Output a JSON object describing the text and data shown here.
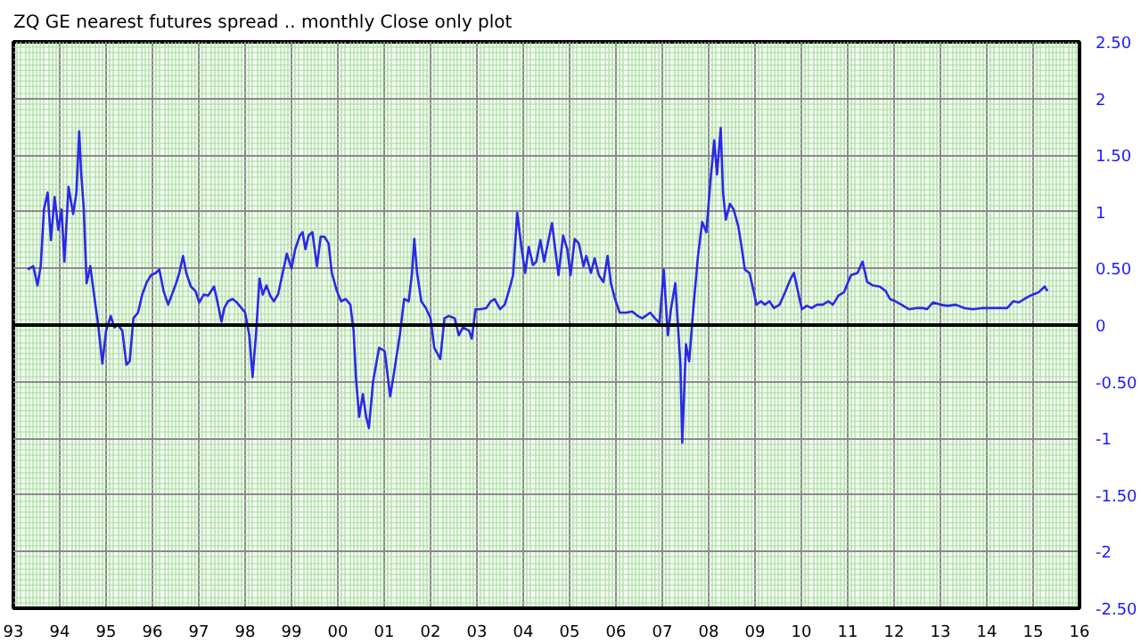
{
  "chart_data": {
    "type": "line",
    "title": "ZQ GE nearest futures spread .. monthly Close only plot",
    "xlim": [
      1993,
      2016
    ],
    "ylim": [
      -2.5,
      2.5
    ],
    "xticks": [
      {
        "value": 1993,
        "label": "93"
      },
      {
        "value": 1994,
        "label": "94"
      },
      {
        "value": 1995,
        "label": "95"
      },
      {
        "value": 1996,
        "label": "96"
      },
      {
        "value": 1997,
        "label": "97"
      },
      {
        "value": 1998,
        "label": "98"
      },
      {
        "value": 1999,
        "label": "99"
      },
      {
        "value": 2000,
        "label": "00"
      },
      {
        "value": 2001,
        "label": "01"
      },
      {
        "value": 2002,
        "label": "02"
      },
      {
        "value": 2003,
        "label": "03"
      },
      {
        "value": 2004,
        "label": "04"
      },
      {
        "value": 2005,
        "label": "05"
      },
      {
        "value": 2006,
        "label": "06"
      },
      {
        "value": 2007,
        "label": "07"
      },
      {
        "value": 2008,
        "label": "08"
      },
      {
        "value": 2009,
        "label": "09"
      },
      {
        "value": 2010,
        "label": "10"
      },
      {
        "value": 2011,
        "label": "11"
      },
      {
        "value": 2012,
        "label": "12"
      },
      {
        "value": 2013,
        "label": "13"
      },
      {
        "value": 2014,
        "label": "14"
      },
      {
        "value": 2015,
        "label": "15"
      },
      {
        "value": 2016,
        "label": "16"
      }
    ],
    "yticks": [
      {
        "value": 2.5,
        "label": "2.50"
      },
      2,
      {
        "value": 1.5,
        "label": "1.50"
      },
      1,
      {
        "value": 0.5,
        "label": "0.50"
      },
      0,
      {
        "value": -0.5,
        "label": "-0.50"
      },
      -1,
      {
        "value": -1.5,
        "label": "-1.50"
      },
      -2,
      {
        "value": -2.5,
        "label": "-2.50"
      }
    ],
    "grid": true,
    "ref_lines": [
      {
        "axis": "y",
        "value": 0,
        "color": "#000000"
      }
    ],
    "series": [
      {
        "color": "#2a2ae6",
        "x": [
          1993.31,
          1993.43,
          1993.52,
          1993.59,
          1993.66,
          1993.74,
          1993.81,
          1993.89,
          1993.97,
          1994.04,
          1994.1,
          1994.19,
          1994.29,
          1994.36,
          1994.42,
          1994.46,
          1994.52,
          1994.58,
          1994.66,
          1994.73,
          1994.83,
          1994.92,
          1995.0,
          1995.1,
          1995.18,
          1995.26,
          1995.35,
          1995.44,
          1995.51,
          1995.59,
          1995.69,
          1995.78,
          1995.88,
          1995.97,
          1996.07,
          1996.15,
          1996.24,
          1996.34,
          1996.44,
          1996.52,
          1996.58,
          1996.66,
          1996.73,
          1996.83,
          1996.93,
          1997.01,
          1997.11,
          1997.2,
          1997.33,
          1997.4,
          1997.49,
          1997.55,
          1997.63,
          1997.73,
          1997.82,
          1997.92,
          1998.0,
          1998.09,
          1998.16,
          1998.24,
          1998.31,
          1998.38,
          1998.46,
          1998.54,
          1998.62,
          1998.71,
          1998.81,
          1998.9,
          1999.0,
          1999.08,
          1999.18,
          1999.24,
          1999.3,
          1999.37,
          1999.45,
          1999.55,
          1999.63,
          1999.71,
          1999.8,
          1999.87,
          1999.98,
          2000.07,
          2000.17,
          2000.27,
          2000.34,
          2000.39,
          2000.46,
          2000.54,
          2000.61,
          2000.67,
          2000.76,
          2000.89,
          2001.01,
          2001.13,
          2001.22,
          2001.34,
          2001.43,
          2001.53,
          2001.6,
          2001.65,
          2001.71,
          2001.8,
          2001.9,
          2002.0,
          2002.08,
          2002.21,
          2002.3,
          2002.39,
          2002.52,
          2002.61,
          2002.7,
          2002.83,
          2002.89,
          2002.97,
          2003.07,
          2003.2,
          2003.3,
          2003.38,
          2003.5,
          2003.6,
          2003.69,
          2003.78,
          2003.87,
          2003.96,
          2004.04,
          2004.12,
          2004.21,
          2004.28,
          2004.37,
          2004.45,
          2004.53,
          2004.62,
          2004.69,
          2004.76,
          2004.86,
          2004.95,
          2005.02,
          2005.11,
          2005.2,
          2005.3,
          2005.36,
          2005.46,
          2005.54,
          2005.63,
          2005.73,
          2005.82,
          2005.89,
          2005.98,
          2006.08,
          2006.23,
          2006.35,
          2006.47,
          2006.57,
          2006.74,
          2006.84,
          2006.94,
          2007.03,
          2007.12,
          2007.19,
          2007.28,
          2007.34,
          2007.39,
          2007.43,
          2007.51,
          2007.58,
          2007.67,
          2007.77,
          2007.86,
          2007.95,
          2008.04,
          2008.12,
          2008.18,
          2008.26,
          2008.31,
          2008.37,
          2008.46,
          2008.54,
          2008.64,
          2008.7,
          2008.78,
          2008.88,
          2008.97,
          2009.03,
          2009.13,
          2009.21,
          2009.31,
          2009.41,
          2009.53,
          2009.66,
          2009.77,
          2009.84,
          2009.93,
          2010.01,
          2010.12,
          2010.22,
          2010.34,
          2010.46,
          2010.58,
          2010.68,
          2010.8,
          2010.92,
          2011.07,
          2011.21,
          2011.32,
          2011.42,
          2011.54,
          2011.69,
          2011.82,
          2011.91,
          2012.03,
          2012.16,
          2012.32,
          2012.47,
          2012.63,
          2012.71,
          2012.84,
          2013.0,
          2013.15,
          2013.33,
          2013.52,
          2013.7,
          2013.89,
          2014.07,
          2014.26,
          2014.44,
          2014.57,
          2014.69,
          2014.81,
          2014.94,
          2015.12,
          2015.25,
          2015.31
        ],
        "values": [
          0.49,
          0.52,
          0.35,
          0.52,
          1.02,
          1.17,
          0.75,
          1.13,
          0.84,
          1.02,
          0.56,
          1.22,
          0.98,
          1.17,
          1.71,
          1.36,
          1.02,
          0.37,
          0.52,
          0.3,
          0,
          -0.34,
          -0.05,
          0.08,
          -0.02,
          0,
          -0.05,
          -0.35,
          -0.32,
          0.06,
          0.11,
          0.27,
          0.38,
          0.44,
          0.46,
          0.49,
          0.3,
          0.18,
          0.29,
          0.38,
          0.46,
          0.61,
          0.46,
          0.34,
          0.3,
          0.2,
          0.27,
          0.26,
          0.34,
          0.21,
          0.03,
          0.15,
          0.21,
          0.23,
          0.2,
          0.15,
          0.11,
          -0.09,
          -0.46,
          -0.05,
          0.41,
          0.27,
          0.35,
          0.26,
          0.21,
          0.27,
          0.46,
          0.63,
          0.5,
          0.67,
          0.79,
          0.82,
          0.67,
          0.79,
          0.82,
          0.52,
          0.78,
          0.78,
          0.72,
          0.46,
          0.3,
          0.21,
          0.23,
          0.18,
          -0.05,
          -0.46,
          -0.81,
          -0.61,
          -0.81,
          -0.91,
          -0.5,
          -0.2,
          -0.23,
          -0.63,
          -0.4,
          -0.08,
          0.23,
          0.21,
          0.46,
          0.76,
          0.46,
          0.21,
          0.15,
          0.06,
          -0.2,
          -0.3,
          0.06,
          0.08,
          0.06,
          -0.09,
          -0.02,
          -0.05,
          -0.12,
          0.14,
          0.14,
          0.15,
          0.21,
          0.23,
          0.14,
          0.18,
          0.3,
          0.44,
          0.99,
          0.69,
          0.46,
          0.69,
          0.53,
          0.56,
          0.75,
          0.56,
          0.72,
          0.9,
          0.67,
          0.44,
          0.79,
          0.67,
          0.44,
          0.76,
          0.72,
          0.52,
          0.61,
          0.46,
          0.59,
          0.44,
          0.38,
          0.61,
          0.37,
          0.23,
          0.11,
          0.11,
          0.12,
          0.08,
          0.06,
          0.11,
          0.06,
          0.02,
          0.49,
          -0.09,
          0.15,
          0.37,
          -0.02,
          -0.35,
          -1.04,
          -0.17,
          -0.32,
          0.15,
          0.61,
          0.91,
          0.82,
          1.28,
          1.63,
          1.33,
          1.74,
          1.17,
          0.93,
          1.07,
          1.02,
          0.87,
          0.72,
          0.49,
          0.46,
          0.3,
          0.18,
          0.21,
          0.18,
          0.21,
          0.15,
          0.18,
          0.3,
          0.41,
          0.46,
          0.29,
          0.14,
          0.17,
          0.15,
          0.18,
          0.18,
          0.21,
          0.18,
          0.26,
          0.29,
          0.44,
          0.46,
          0.56,
          0.38,
          0.35,
          0.34,
          0.3,
          0.23,
          0.21,
          0.18,
          0.14,
          0.15,
          0.15,
          0.14,
          0.2,
          0.18,
          0.17,
          0.18,
          0.15,
          0.14,
          0.15,
          0.15,
          0.15,
          0.15,
          0.21,
          0.2,
          0.23,
          0.26,
          0.29,
          0.34,
          0.3
        ]
      }
    ]
  }
}
